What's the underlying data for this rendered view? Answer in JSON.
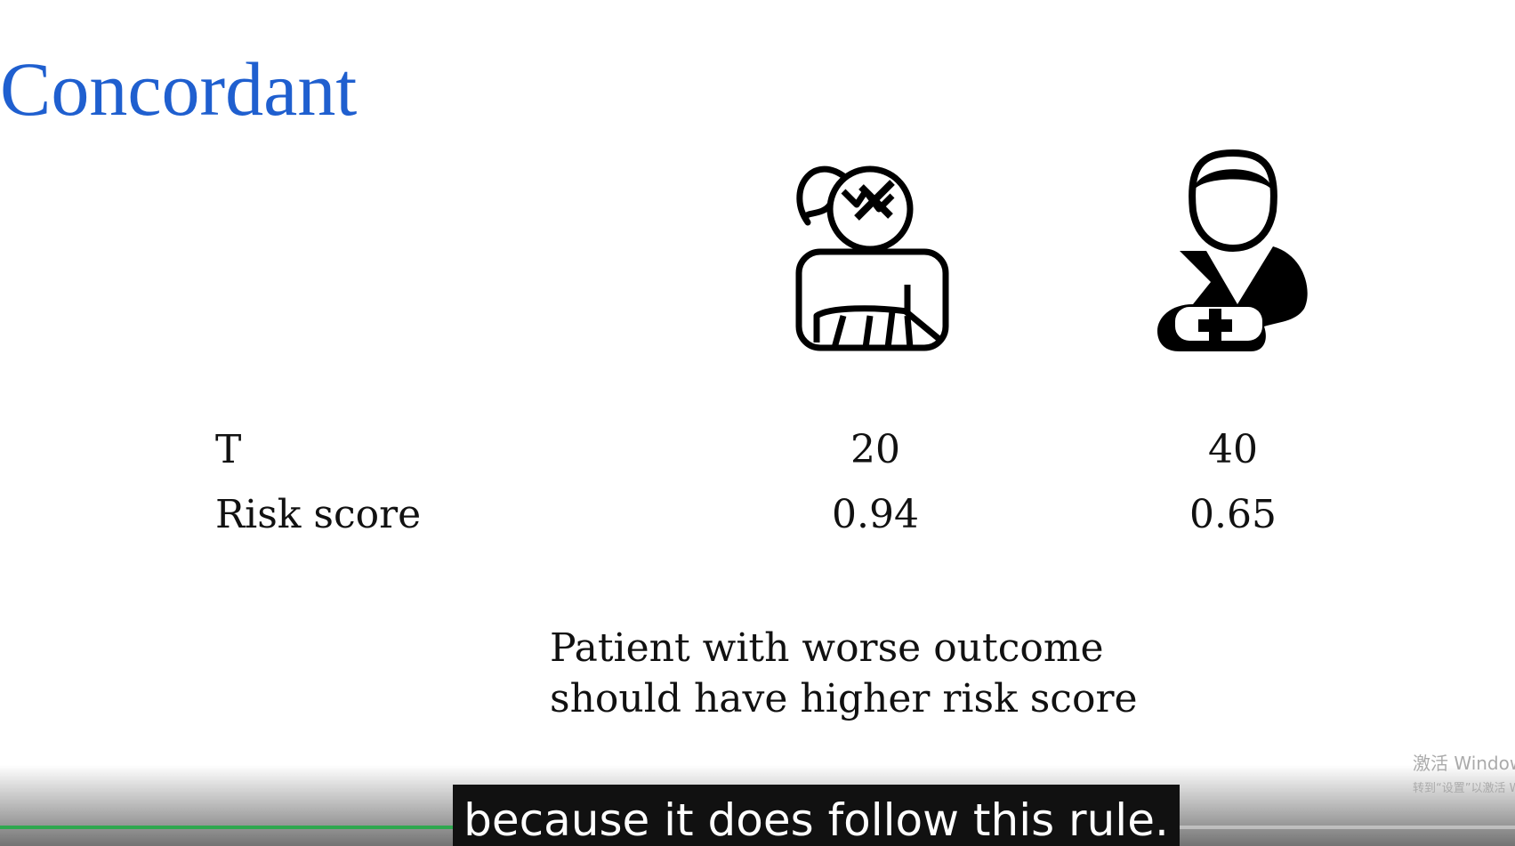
{
  "header": {
    "title": "Concordant"
  },
  "table": {
    "rows": [
      {
        "label": "T",
        "values": [
          20,
          40
        ]
      },
      {
        "label": "Risk score",
        "values": [
          0.94,
          0.65
        ]
      }
    ]
  },
  "caption": {
    "lines": [
      "Patient with worse outcome",
      "should have higher risk score"
    ]
  },
  "subtitle": {
    "text": "because it does follow this rule."
  },
  "watermark": {
    "lines": [
      "激活 Windows",
      "转到“设置”以激活 Windows。"
    ]
  }
}
